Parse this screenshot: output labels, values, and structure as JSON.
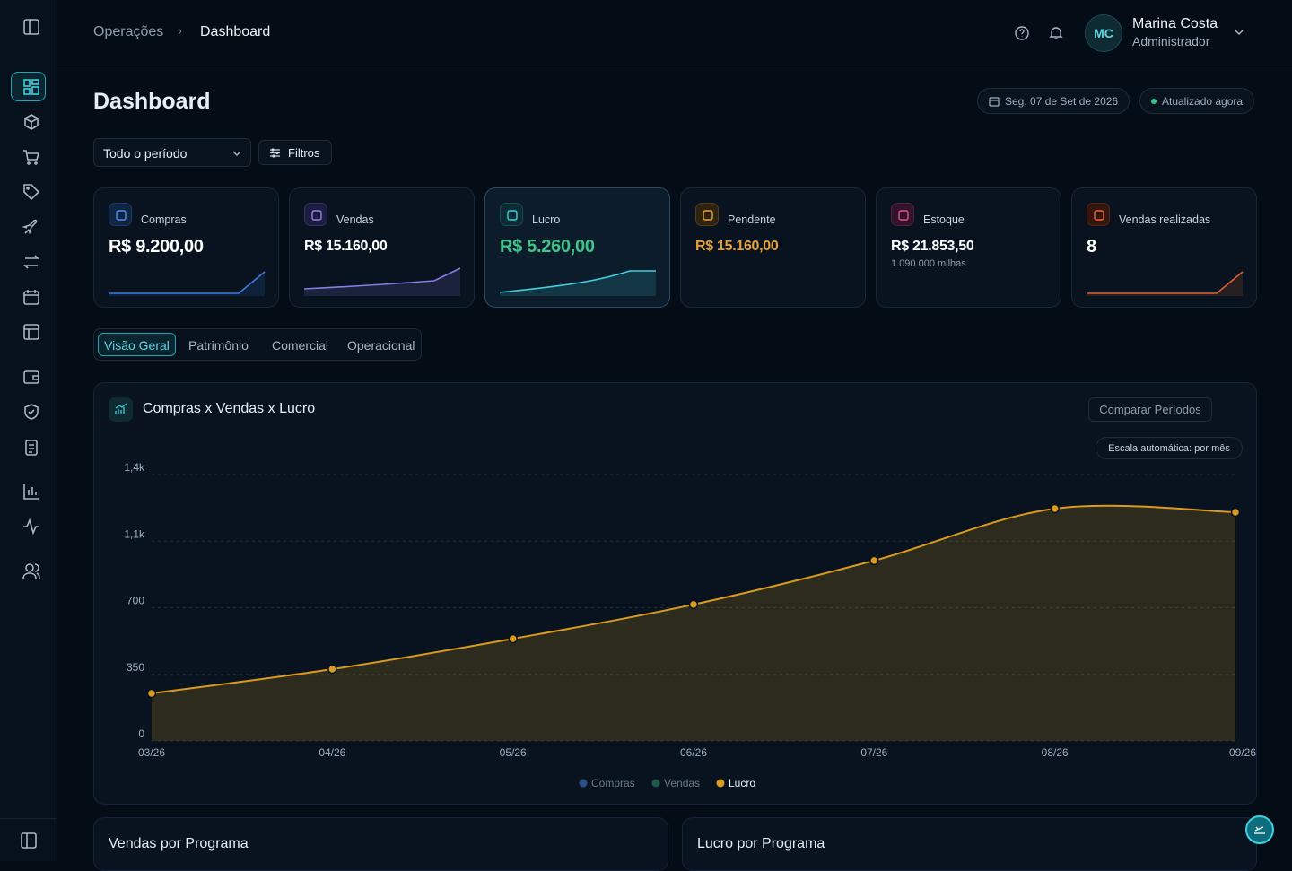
{
  "header": {
    "breadcrumb": [
      "Operações",
      "Dashboard"
    ],
    "user": {
      "initials": "MC",
      "name": "Marina Costa",
      "role": "Administrador"
    }
  },
  "page": {
    "title": "Dashboard",
    "date": "Seg, 07 de Set de 2026",
    "status": "Atualizado agora",
    "period": "Todo o período",
    "filters": "Filtros"
  },
  "kpis": [
    {
      "label": "Compras",
      "value": "R$ 9.200,00"
    },
    {
      "label": "Vendas",
      "value": "R$ 15.160,00"
    },
    {
      "label": "Lucro",
      "value": "R$ 5.260,00"
    },
    {
      "label": "Pendente",
      "value": "R$ 15.160,00"
    },
    {
      "label": "Estoque",
      "value": "R$ 21.853,50",
      "note": "1.090.000 milhas"
    },
    {
      "label": "Vendas realizadas",
      "value": "8"
    }
  ],
  "tabs": [
    "Visão Geral",
    "Patrimônio",
    "Comercial",
    "Operacional"
  ],
  "chart_data": {
    "type": "area",
    "title": "Compras x Vendas x Lucro",
    "compare": "Comparar Períodos",
    "scale_note": "Escala automática: por mês",
    "categories": [
      "03/26",
      "04/26",
      "05/26",
      "06/26",
      "07/26",
      "08/26",
      "09/26"
    ],
    "series": [
      {
        "name": "Lucro",
        "color": "#d99a1e",
        "values": [
          250,
          377,
          537,
          717,
          948,
          1221,
          1202
        ]
      }
    ],
    "legend": [
      {
        "name": "Compras",
        "color": "#2c4f86"
      },
      {
        "name": "Vendas",
        "color": "#1f5a48"
      },
      {
        "name": "Lucro",
        "color": "#d99a1e"
      }
    ],
    "ylim": [
      0,
      1400
    ],
    "yticks": [
      0,
      350,
      700,
      {
        "value": 1050,
        "label": "1,1k"
      },
      {
        "value": 1400,
        "label": "1,4k"
      }
    ],
    "grid": true
  },
  "panels": [
    "Vendas por Programa",
    "Lucro por Programa"
  ]
}
